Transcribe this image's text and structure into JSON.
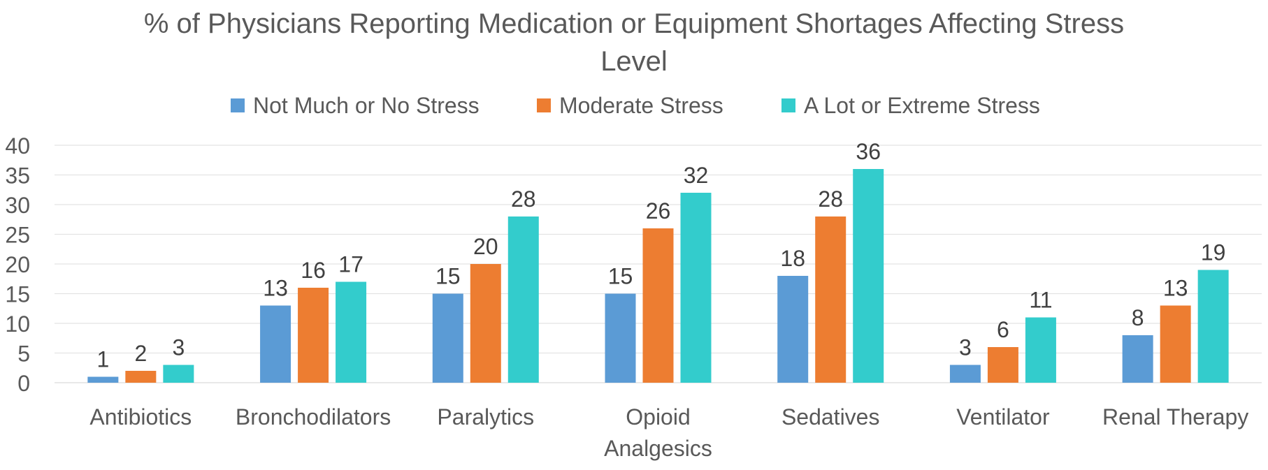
{
  "chart_data": {
    "type": "bar",
    "title": "% of Physicians Reporting Medication or Equipment Shortages Affecting Stress Level",
    "title_lines": [
      "% of Physicians Reporting Medication or Equipment Shortages Affecting Stress",
      "Level"
    ],
    "xlabel": "",
    "ylabel": "",
    "ylim": [
      0,
      40
    ],
    "yticks": [
      0,
      5,
      10,
      15,
      20,
      25,
      30,
      35,
      40
    ],
    "grid": true,
    "legend_position": "top",
    "categories": [
      "Antibiotics",
      "Bronchodilators",
      "Paralytics",
      "Opioid Analgesics",
      "Sedatives",
      "Ventilator",
      "Renal Therapy"
    ],
    "category_label_lines": [
      [
        "Antibiotics"
      ],
      [
        "Bronchodilators"
      ],
      [
        "Paralytics"
      ],
      [
        "Opioid",
        "Analgesics"
      ],
      [
        "Sedatives"
      ],
      [
        "Ventilator"
      ],
      [
        "Renal Therapy"
      ]
    ],
    "series": [
      {
        "name": "Not Much or No Stress",
        "color": "#5B9BD5",
        "values": [
          1,
          13,
          15,
          15,
          18,
          3,
          8
        ]
      },
      {
        "name": "Moderate Stress",
        "color": "#ED7D31",
        "values": [
          2,
          16,
          20,
          26,
          28,
          6,
          13
        ]
      },
      {
        "name": "A Lot or Extreme Stress",
        "color": "#33CCCC",
        "values": [
          3,
          17,
          28,
          32,
          36,
          11,
          19
        ]
      }
    ]
  }
}
